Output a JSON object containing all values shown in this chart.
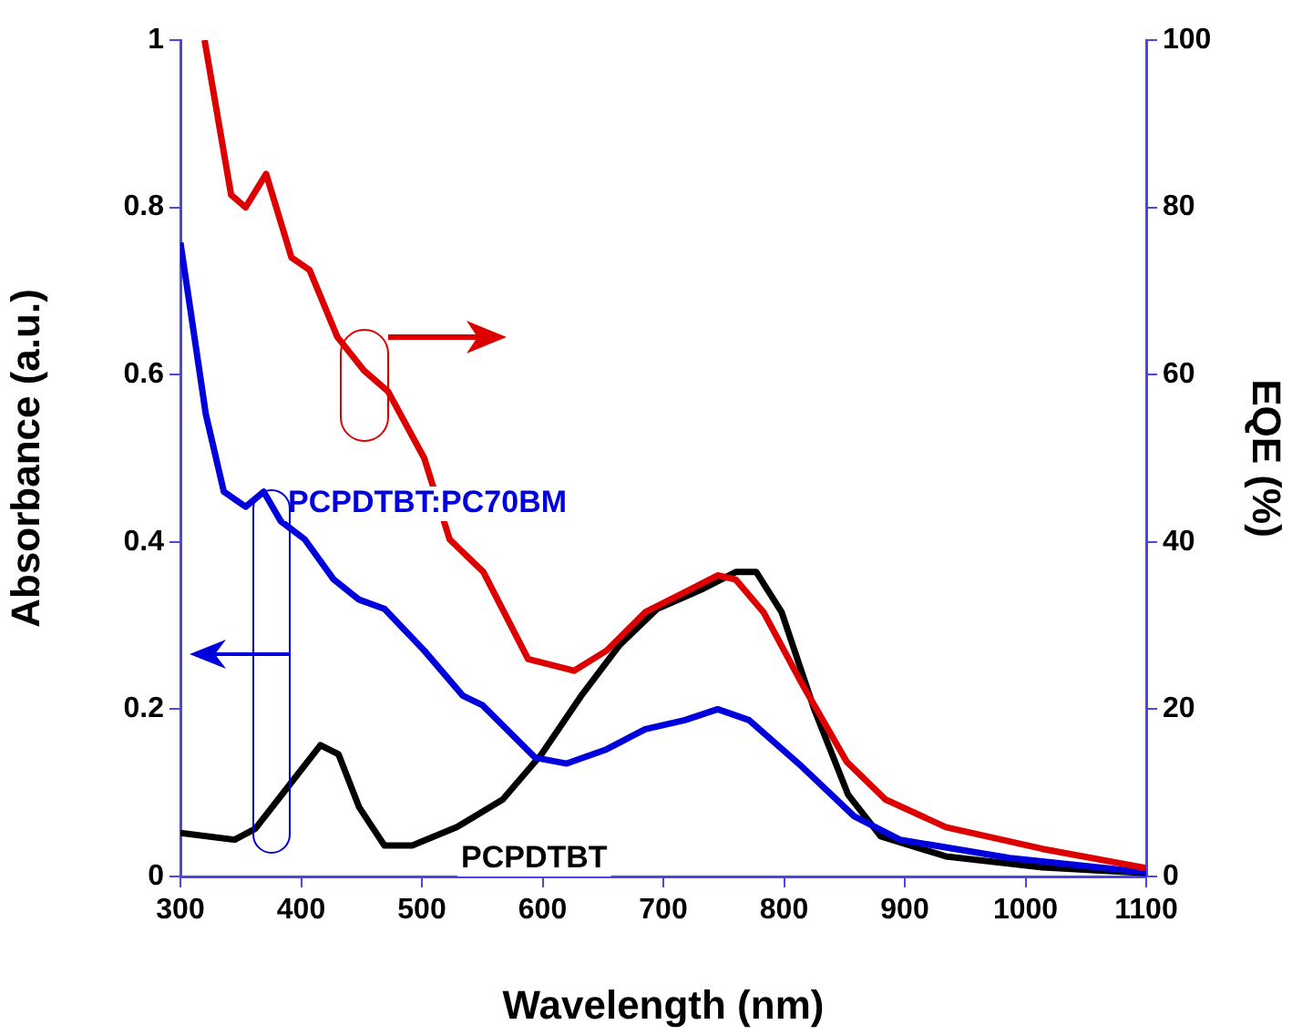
{
  "chart_data": {
    "type": "line",
    "xlabel": "Wavelength (nm)",
    "ylabel": "Absorbance (a.u.)",
    "y2label": "EQE (%)",
    "xlim": [
      300,
      1100
    ],
    "xticks": [
      300,
      400,
      500,
      600,
      700,
      800,
      900,
      1000,
      1100
    ],
    "ylim": [
      0,
      1
    ],
    "yticks": [
      0,
      0.2,
      0.4,
      0.6,
      0.8,
      1
    ],
    "y2lim": [
      0,
      100
    ],
    "y2ticks": [
      0,
      20,
      40,
      60,
      80,
      100
    ],
    "series": [
      {
        "color": "#dd0000",
        "axis": "y2",
        "x": [
          320,
          342,
          354,
          371,
          392,
          407,
          430,
          452,
          472,
          502,
          523,
          551,
          588,
          626,
          653,
          685,
          718,
          745,
          760,
          783,
          815,
          852,
          884,
          934,
          1014,
          1100
        ],
        "values": [
          100,
          81.5,
          80,
          84,
          74,
          72.5,
          64.5,
          60.5,
          58,
          50,
          40.3,
          36.4,
          26,
          24.6,
          27,
          31.6,
          34,
          36,
          35.5,
          31.6,
          23,
          13.7,
          9.2,
          5.9,
          3.3,
          1
        ]
      },
      {
        "name": "PCPDTBT:PC70BM",
        "color": "#0000dd",
        "x": [
          300,
          306,
          321,
          336,
          354,
          369,
          383,
          403,
          427,
          448,
          469,
          502,
          534,
          550,
          594,
          620,
          653,
          685,
          718,
          745,
          771,
          815,
          858,
          896,
          987,
          1100
        ],
        "values": [
          0.758,
          0.7,
          0.553,
          0.46,
          0.442,
          0.46,
          0.425,
          0.403,
          0.355,
          0.331,
          0.32,
          0.27,
          0.216,
          0.205,
          0.142,
          0.135,
          0.152,
          0.176,
          0.187,
          0.2,
          0.187,
          0.131,
          0.072,
          0.044,
          0.022,
          0.005
        ]
      },
      {
        "name": "PCPDTBT",
        "color": "#000000",
        "x": [
          300,
          345,
          362,
          389,
          416,
          431,
          448,
          469,
          492,
          529,
          567,
          599,
          632,
          664,
          695,
          733,
          760,
          777,
          798,
          825,
          853,
          880,
          934,
          1014,
          1100
        ],
        "values": [
          0.052,
          0.044,
          0.057,
          0.107,
          0.157,
          0.146,
          0.083,
          0.037,
          0.037,
          0.059,
          0.092,
          0.146,
          0.216,
          0.277,
          0.32,
          0.344,
          0.364,
          0.364,
          0.316,
          0.2,
          0.098,
          0.048,
          0.024,
          0.011,
          0.004
        ]
      }
    ]
  }
}
